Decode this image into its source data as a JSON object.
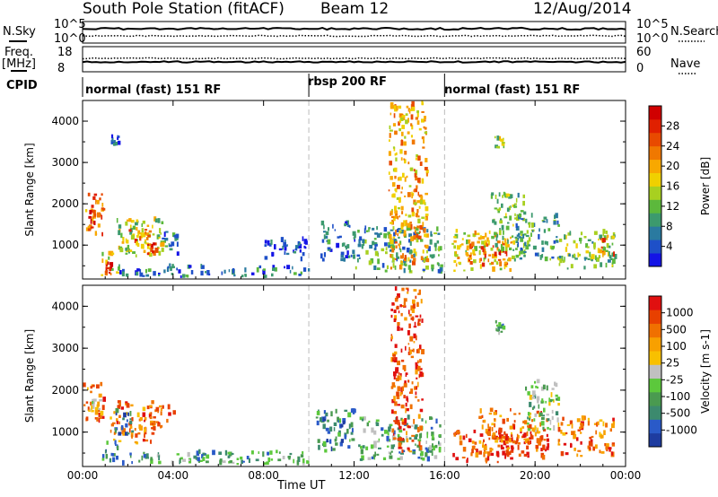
{
  "header": {
    "station": "South Pole Station (fitACF)",
    "beam": "Beam 12",
    "date": "12/Aug/2014"
  },
  "top_panels": {
    "nsky_label": "N.Sky",
    "nsearch_label": "N.Search",
    "nsky_ticks": [
      "10^5",
      "10^0"
    ],
    "freq_label": "Freq.",
    "freq_unit": "[MHz]",
    "freq_ticks": [
      "18",
      "8"
    ],
    "nave_label": "Nave",
    "nave_ticks": [
      "60",
      "0"
    ],
    "cpid_label": "CPID"
  },
  "cpid_segments": [
    {
      "label": "normal (fast) 151 RF",
      "start": "00:00",
      "end": "10:00"
    },
    {
      "label": "rbsp 200 RF",
      "start": "10:00",
      "end": "16:00"
    },
    {
      "label": "normal (fast) 151 RF",
      "start": "16:00",
      "end": "00:00"
    }
  ],
  "chart_data": [
    {
      "type": "heatmap",
      "quantity": "Power",
      "xlabel": "Time UT",
      "ylabel": "Slant Range [km]",
      "x_ticks": [
        "00:00",
        "04:00",
        "08:00",
        "12:00",
        "16:00",
        "20:00",
        "00:00"
      ],
      "x_range_hours": [
        0,
        24
      ],
      "y_ticks": [
        1000,
        2000,
        3000,
        4000
      ],
      "ylim": [
        180,
        4500
      ],
      "colorbar": {
        "label": "Power [dB]",
        "ticks": [
          "4",
          "8",
          "12",
          "16",
          "20",
          "24",
          "28"
        ],
        "colors": [
          "#1414e6",
          "#1e50c8",
          "#2a7aa0",
          "#3c9a6e",
          "#5cb83c",
          "#a8d020",
          "#f0d000",
          "#f8a800",
          "#f07800",
          "#e84a00",
          "#e02000",
          "#d00000"
        ]
      },
      "patches": [
        {
          "t": [
            0.1,
            0.9
          ],
          "r": [
            1200,
            2200
          ],
          "level": 8
        },
        {
          "t": [
            0.2,
            0.6
          ],
          "r": [
            1300,
            1800
          ],
          "level": 10
        },
        {
          "t": [
            0.8,
            1.6
          ],
          "r": [
            250,
            800
          ],
          "level": 6
        },
        {
          "t": [
            1.0,
            1.3
          ],
          "r": [
            300,
            550
          ],
          "level": 11
        },
        {
          "t": [
            1.5,
            3.6
          ],
          "r": [
            700,
            1600
          ],
          "level": 5
        },
        {
          "t": [
            2.0,
            3.2
          ],
          "r": [
            800,
            1400
          ],
          "level": 8
        },
        {
          "t": [
            2.8,
            3.2
          ],
          "r": [
            700,
            1000
          ],
          "level": 10
        },
        {
          "t": [
            3.5,
            4.3
          ],
          "r": [
            700,
            1300
          ],
          "level": 2
        },
        {
          "t": [
            1.4,
            10.0
          ],
          "r": [
            200,
            450
          ],
          "level": 2
        },
        {
          "t": [
            8.0,
            10.0
          ],
          "r": [
            600,
            1100
          ],
          "level": 1
        },
        {
          "t": [
            10.5,
            12.0
          ],
          "r": [
            600,
            1500
          ],
          "level": 2
        },
        {
          "t": [
            12.0,
            15.8
          ],
          "r": [
            300,
            1400
          ],
          "level": 3
        },
        {
          "t": [
            13.5,
            15.2
          ],
          "r": [
            400,
            4400
          ],
          "level": 7
        },
        {
          "t": [
            16.3,
            19.0
          ],
          "r": [
            350,
            1300
          ],
          "level": 6
        },
        {
          "t": [
            17.0,
            18.8
          ],
          "r": [
            450,
            1000
          ],
          "level": 9
        },
        {
          "t": [
            18.0,
            19.5
          ],
          "r": [
            800,
            2200
          ],
          "level": 4
        },
        {
          "t": [
            18.2,
            18.6
          ],
          "r": [
            3300,
            3600
          ],
          "level": 5
        },
        {
          "t": [
            19.0,
            21.0
          ],
          "r": [
            600,
            1700
          ],
          "level": 3
        },
        {
          "t": [
            21.0,
            23.6
          ],
          "r": [
            400,
            1300
          ],
          "level": 4
        },
        {
          "t": [
            22.8,
            23.5
          ],
          "r": [
            700,
            1200
          ],
          "level": 8
        },
        {
          "t": [
            1.2,
            1.6
          ],
          "r": [
            3400,
            3600
          ],
          "level": 1
        }
      ]
    },
    {
      "type": "heatmap",
      "quantity": "Velocity",
      "xlabel": "Time UT",
      "ylabel": "Slant Range [km]",
      "x_ticks": [
        "00:00",
        "04:00",
        "08:00",
        "12:00",
        "16:00",
        "20:00",
        "00:00"
      ],
      "x_range_hours": [
        0,
        24
      ],
      "y_ticks": [
        1000,
        2000,
        3000,
        4000
      ],
      "ylim": [
        180,
        4500
      ],
      "colorbar": {
        "label": "Velocity [m s-1]",
        "ticks": [
          "1000",
          "500",
          "100",
          "25",
          "-25",
          "-100",
          "-500",
          "-1000"
        ],
        "colors": [
          "#1e3ca0",
          "#2a5ac8",
          "#3c8a6e",
          "#4a9a50",
          "#5cc83c",
          "#c0c0c0",
          "#f8c000",
          "#f8a000",
          "#f07000",
          "#e84000",
          "#e01010"
        ]
      },
      "patches": [
        {
          "t": [
            0.0,
            0.9
          ],
          "r": [
            1200,
            2100
          ],
          "level": 8
        },
        {
          "t": [
            0.3,
            0.8
          ],
          "r": [
            1400,
            1800
          ],
          "level": 6
        },
        {
          "t": [
            1.2,
            3.2
          ],
          "r": [
            700,
            1700
          ],
          "level": 8
        },
        {
          "t": [
            1.4,
            2.2
          ],
          "r": [
            900,
            1500
          ],
          "level": 1
        },
        {
          "t": [
            2.9,
            4.0
          ],
          "r": [
            1000,
            1600
          ],
          "level": 9
        },
        {
          "t": [
            0.8,
            1.6
          ],
          "r": [
            200,
            800
          ],
          "level": 2
        },
        {
          "t": [
            1.6,
            10.0
          ],
          "r": [
            200,
            500
          ],
          "level": 3
        },
        {
          "t": [
            10.3,
            12.2
          ],
          "r": [
            500,
            1500
          ],
          "level": 2
        },
        {
          "t": [
            12.2,
            15.8
          ],
          "r": [
            300,
            1300
          ],
          "level": 3
        },
        {
          "t": [
            13.6,
            15.0
          ],
          "r": [
            500,
            4400
          ],
          "level": 9
        },
        {
          "t": [
            16.3,
            20.6
          ],
          "r": [
            250,
            1000
          ],
          "level": 9
        },
        {
          "t": [
            17.5,
            20.5
          ],
          "r": [
            700,
            1500
          ],
          "level": 8
        },
        {
          "t": [
            18.0,
            19.0
          ],
          "r": [
            400,
            900
          ],
          "level": 10
        },
        {
          "t": [
            19.5,
            21.0
          ],
          "r": [
            1000,
            2200
          ],
          "level": 4
        },
        {
          "t": [
            21.0,
            23.5
          ],
          "r": [
            400,
            1300
          ],
          "level": 8
        },
        {
          "t": [
            18.2,
            18.6
          ],
          "r": [
            3300,
            3600
          ],
          "level": 3
        }
      ]
    }
  ]
}
